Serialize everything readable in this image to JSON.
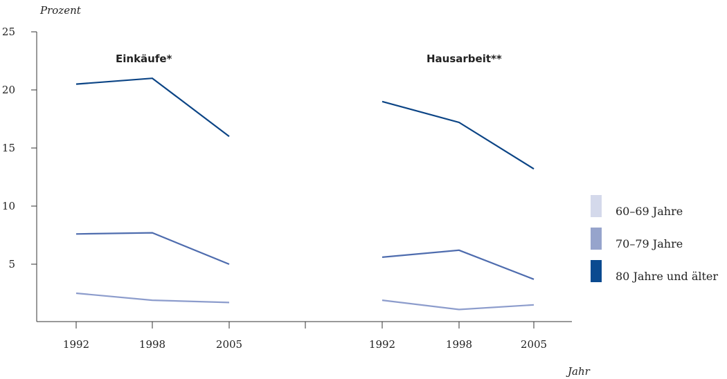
{
  "chart_data": {
    "type": "line",
    "ylabel": "Prozent",
    "xlabel": "Jahr",
    "ylim": [
      0,
      25
    ],
    "yticks": [
      5,
      10,
      15,
      20,
      25
    ],
    "x": [
      "1992",
      "1998",
      "2005"
    ],
    "panels": [
      {
        "title": "Einkäufe*",
        "series": [
          {
            "name": "60–69 Jahre",
            "values": [
              2.5,
              1.9,
              1.7
            ]
          },
          {
            "name": "70–79 Jahre",
            "values": [
              7.6,
              7.7,
              5.0
            ]
          },
          {
            "name": "80 Jahre und älter",
            "values": [
              20.5,
              21.0,
              16.0
            ]
          }
        ]
      },
      {
        "title": "Hausarbeit**",
        "series": [
          {
            "name": "60–69 Jahre",
            "values": [
              1.9,
              1.1,
              1.5
            ]
          },
          {
            "name": "70–79 Jahre",
            "values": [
              5.6,
              6.2,
              3.7
            ]
          },
          {
            "name": "80 Jahre und älter",
            "values": [
              19.0,
              17.2,
              13.2
            ]
          }
        ]
      }
    ],
    "legend": [
      {
        "label": "60–69 Jahre",
        "color": "#d4d9eb"
      },
      {
        "label": "70–79 Jahre",
        "color": "#96a4cc"
      },
      {
        "label": "80 Jahre und älter",
        "color": "#0a4a90"
      }
    ],
    "line_colors": [
      "#8c9ccc",
      "#4e6cae",
      "#0b4485"
    ],
    "axis_color": "#333333",
    "grid": false,
    "legend_position": "right"
  }
}
